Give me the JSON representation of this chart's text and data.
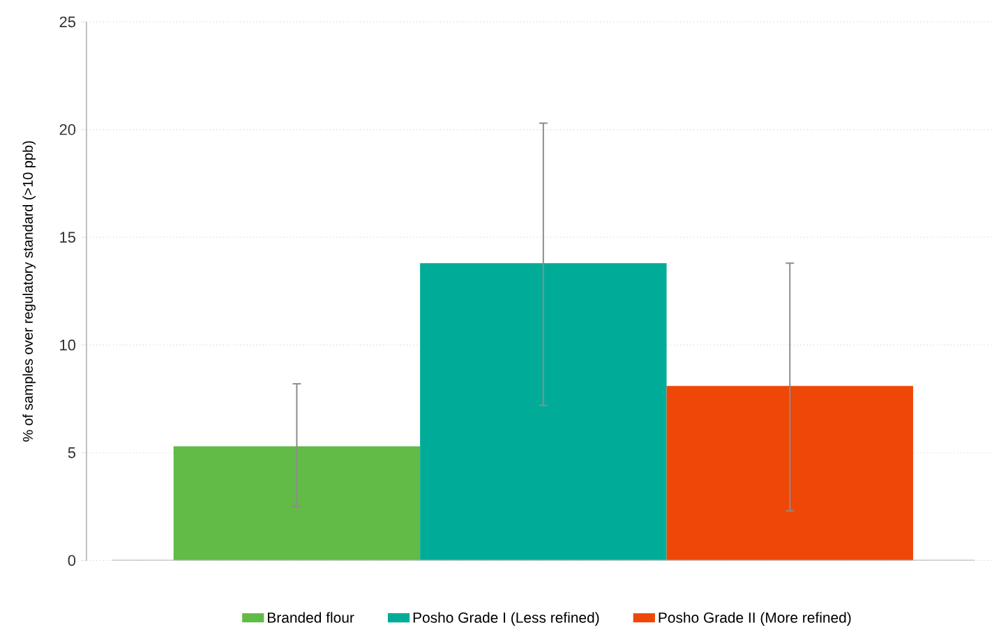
{
  "chart_data": {
    "type": "bar",
    "ylabel": "% of samples over regulatory standard (>10 ppb)",
    "categories": [
      null,
      null,
      null
    ],
    "series": [
      {
        "name": "Branded flour",
        "color": "#62bb46",
        "values": [
          5.3,
          null,
          null
        ],
        "errors": [
          [
            2.5,
            8.2
          ],
          null,
          null
        ]
      },
      {
        "name": "Posho Grade I (Less refined)",
        "color": "#00ac98",
        "values": [
          null,
          13.8,
          null
        ],
        "errors": [
          null,
          [
            7.2,
            20.3
          ],
          null
        ]
      },
      {
        "name": "Posho Grade II (More refined)",
        "color": "#ee4708",
        "values": [
          null,
          null,
          8.1
        ],
        "errors": [
          null,
          null,
          [
            2.3,
            13.8
          ]
        ]
      }
    ],
    "ylim": [
      0,
      25
    ],
    "yticks": [
      0,
      5,
      10,
      15,
      20,
      25
    ],
    "grid": "y",
    "legend": "bottom",
    "tick_labels": "y"
  }
}
